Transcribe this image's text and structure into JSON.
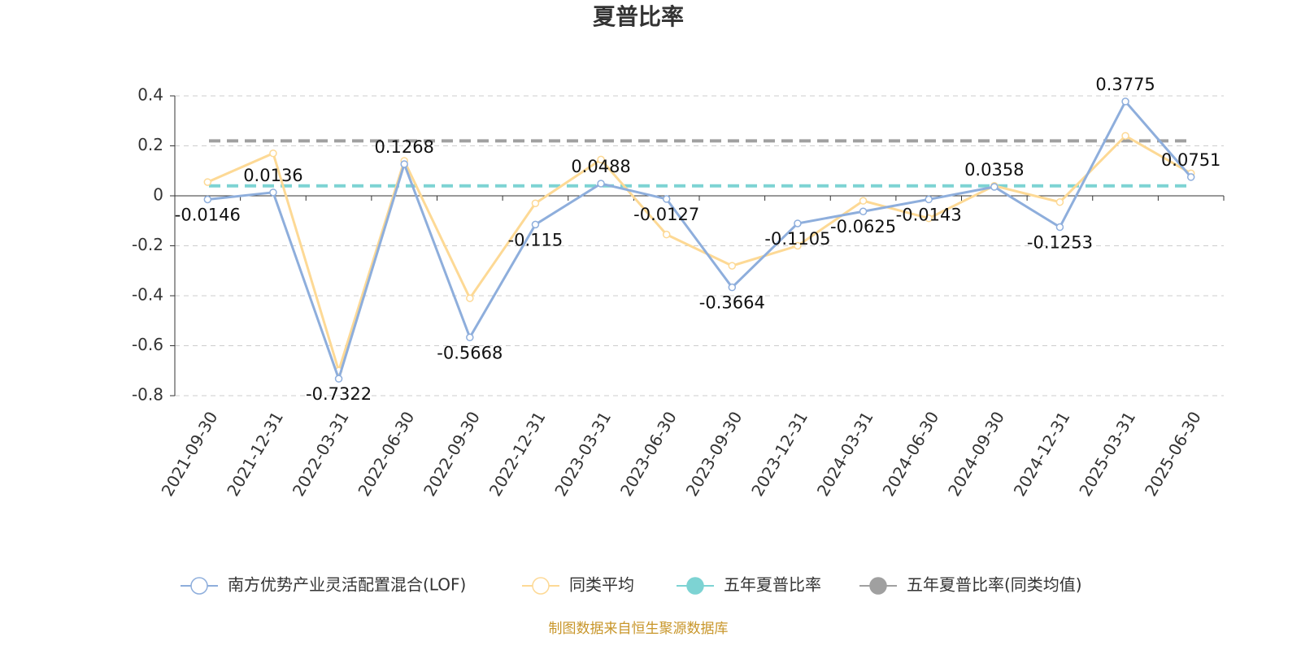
{
  "chart_data": {
    "type": "line",
    "title": "夏普比率",
    "source": "制图数据来自恒生聚源数据库",
    "categories": [
      "2021-09-30",
      "2021-12-31",
      "2022-03-31",
      "2022-06-30",
      "2022-09-30",
      "2022-12-31",
      "2023-03-31",
      "2023-06-30",
      "2023-09-30",
      "2023-12-31",
      "2024-03-31",
      "2024-06-30",
      "2024-09-30",
      "2024-12-31",
      "2025-03-31",
      "2025-06-30"
    ],
    "series": [
      {
        "name": "南方优势产业灵活配置混合(LOF)",
        "color": "#8eaedc",
        "values": [
          -0.0146,
          0.0136,
          -0.7322,
          0.1268,
          -0.5668,
          -0.115,
          0.0488,
          -0.0127,
          -0.3664,
          -0.1105,
          -0.0625,
          -0.0143,
          0.0358,
          -0.1253,
          0.3775,
          0.0751
        ],
        "data_labels": true
      },
      {
        "name": "同类平均",
        "color": "#fdd995",
        "values": [
          0.055,
          0.17,
          -0.7,
          0.14,
          -0.41,
          -0.03,
          0.145,
          -0.155,
          -0.28,
          -0.2,
          -0.02,
          -0.09,
          0.04,
          -0.025,
          0.24,
          0.09
        ]
      },
      {
        "name": "五年夏普比率",
        "color": "#7dd3d3",
        "value": 0.04
      },
      {
        "name": "五年夏普比率(同类均值)",
        "color": "#a0a0a0",
        "value": 0.22
      }
    ],
    "ylim": [
      -0.8,
      0.4
    ],
    "yticks": [
      0.4,
      0.2,
      0,
      -0.2,
      -0.4,
      -0.6,
      -0.8
    ],
    "grid": true
  }
}
